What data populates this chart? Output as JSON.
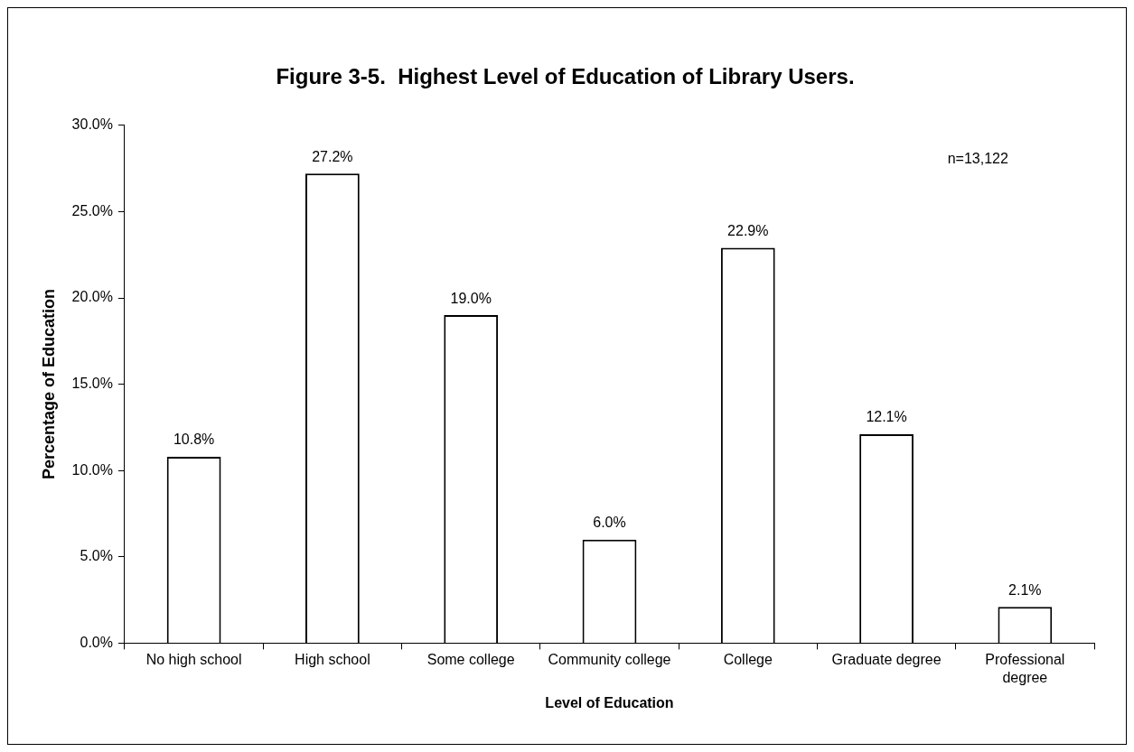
{
  "chart_data": {
    "type": "bar",
    "title": "Figure 3-5.  Highest Level of Education of Library Users.",
    "xlabel": "Level of Education",
    "ylabel": "Percentage of Education",
    "categories": [
      "No high school",
      "High school",
      "Some college",
      "Community college",
      "College",
      "Graduate degree",
      "Professional degree"
    ],
    "values": [
      10.8,
      27.2,
      19.0,
      6.0,
      22.9,
      12.1,
      2.1
    ],
    "value_labels": [
      "10.8%",
      "27.2%",
      "19.0%",
      "6.0%",
      "22.9%",
      "12.1%",
      "2.1%"
    ],
    "color": "#ffffff",
    "ylim": [
      0,
      30
    ],
    "yticks": [
      {
        "value": 0,
        "label": "0.0%"
      },
      {
        "value": 5,
        "label": "5.0%"
      },
      {
        "value": 10,
        "label": "10.0%"
      },
      {
        "value": 15,
        "label": "15.0%"
      },
      {
        "value": 20,
        "label": "20.0%"
      },
      {
        "value": 25,
        "label": "25.0%"
      },
      {
        "value": 30,
        "label": "30.0%"
      }
    ],
    "grid": false,
    "annotations": [
      "n=13,122"
    ]
  }
}
